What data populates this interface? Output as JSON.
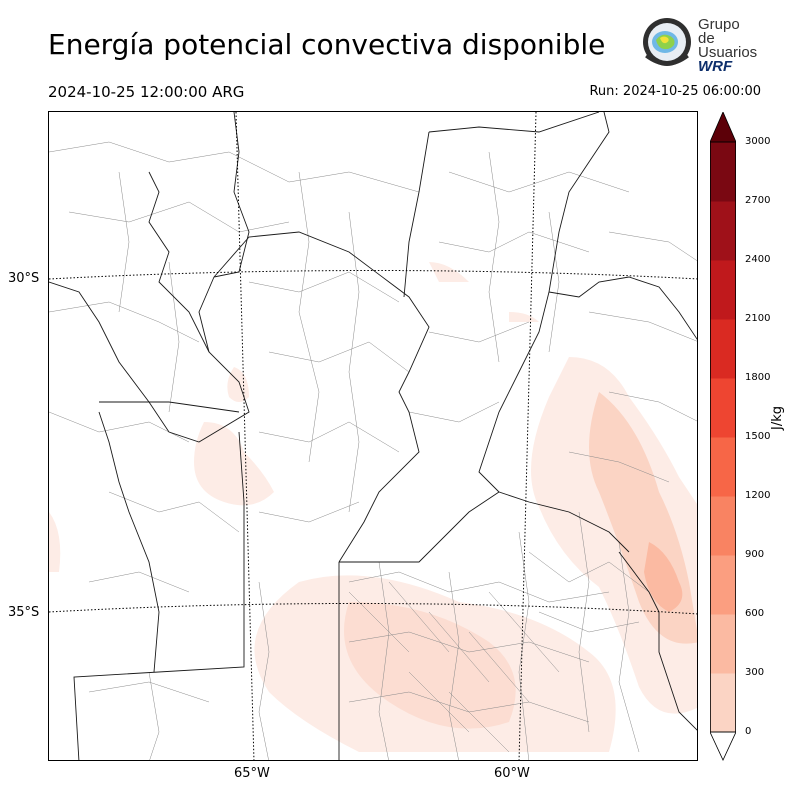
{
  "title": "Energía potencial convectiva disponible",
  "valid_time": "2024-10-25 12:00:00 ARG",
  "run_time": "Run: 2024-10-25 06:00:00",
  "logo": {
    "line1": "Grupo de",
    "line2": "Usuarios",
    "line3": "WRF"
  },
  "map": {
    "lat_labels": [
      "30°S",
      "35°S"
    ],
    "lon_labels": [
      "65°W",
      "60°W"
    ]
  },
  "colorbar": {
    "units": "J/kg",
    "ticks": [
      "3000",
      "2700",
      "2400",
      "2100",
      "1800",
      "1500",
      "1200",
      "900",
      "600",
      "300",
      "0"
    ],
    "colors": [
      "#fdece6",
      "#fbd4c4",
      "#fbbaa2",
      "#fb9e80",
      "#f98362",
      "#f76647",
      "#ee4531",
      "#da2a22",
      "#c0191c",
      "#9f1119",
      "#7a0812",
      "#5c0008"
    ]
  }
}
